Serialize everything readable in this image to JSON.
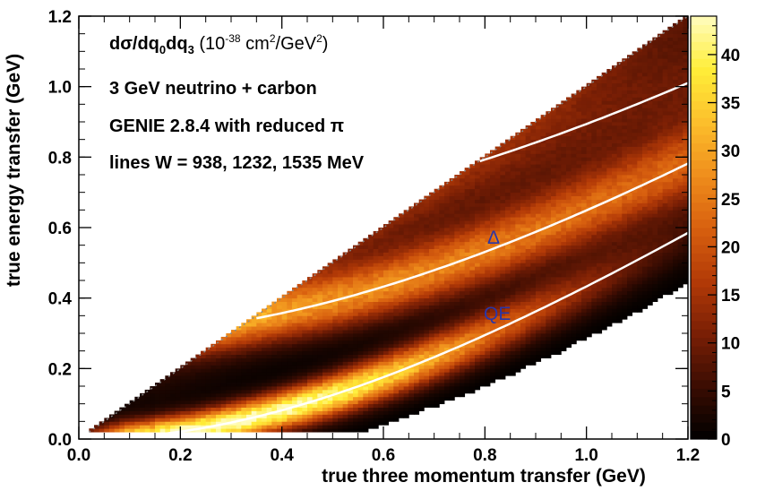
{
  "chart_data": {
    "type": "heatmap",
    "title": "",
    "xlabel": "true three momentum transfer (GeV)",
    "ylabel": "true energy transfer (GeV)",
    "xlim": [
      0.0,
      1.2
    ],
    "ylim": [
      0.0,
      1.2
    ],
    "x_ticks": [
      "0.0",
      "0.2",
      "0.4",
      "0.6",
      "0.8",
      "1.0",
      "1.2"
    ],
    "y_ticks": [
      "0.0",
      "0.2",
      "0.4",
      "0.6",
      "0.8",
      "1.0",
      "1.2"
    ],
    "zlim": [
      0,
      44
    ],
    "z_ticks": [
      "0",
      "5",
      "10",
      "15",
      "20",
      "25",
      "30",
      "35",
      "40"
    ],
    "colormap": [
      "#000000",
      "#3a0c02",
      "#7a1f05",
      "#b33a07",
      "#d8600f",
      "#ef8e1c",
      "#fcbf2c",
      "#ffee38",
      "#fffcbf"
    ],
    "annotation_lines": [
      {
        "text": "dσ/dq",
        "sub1": "0",
        "mid": "dq",
        "sub2": "3",
        "unit_pre": " (10",
        "sup1": "-38",
        "unit_mid": " cm",
        "sup2": "2",
        "unit_post": "/GeV",
        "sup3": "2",
        "close": ")"
      },
      {
        "text": "3 GeV neutrino + carbon"
      },
      {
        "text": "GENIE 2.8.4 with reduced π"
      },
      {
        "text": "lines W = 938, 1232, 1535 MeV"
      }
    ],
    "region_labels": [
      {
        "text": "Δ",
        "x": 0.8,
        "y": 0.58
      },
      {
        "text": "QE",
        "x": 0.8,
        "y": 0.33
      }
    ],
    "w_lines_MeV": [
      938,
      1232,
      1535
    ],
    "ridges": [
      {
        "name": "QE",
        "peak": 44,
        "width_GeV": 0.045
      },
      {
        "name": "Delta",
        "peak": 26,
        "width_GeV": 0.06
      }
    ]
  }
}
